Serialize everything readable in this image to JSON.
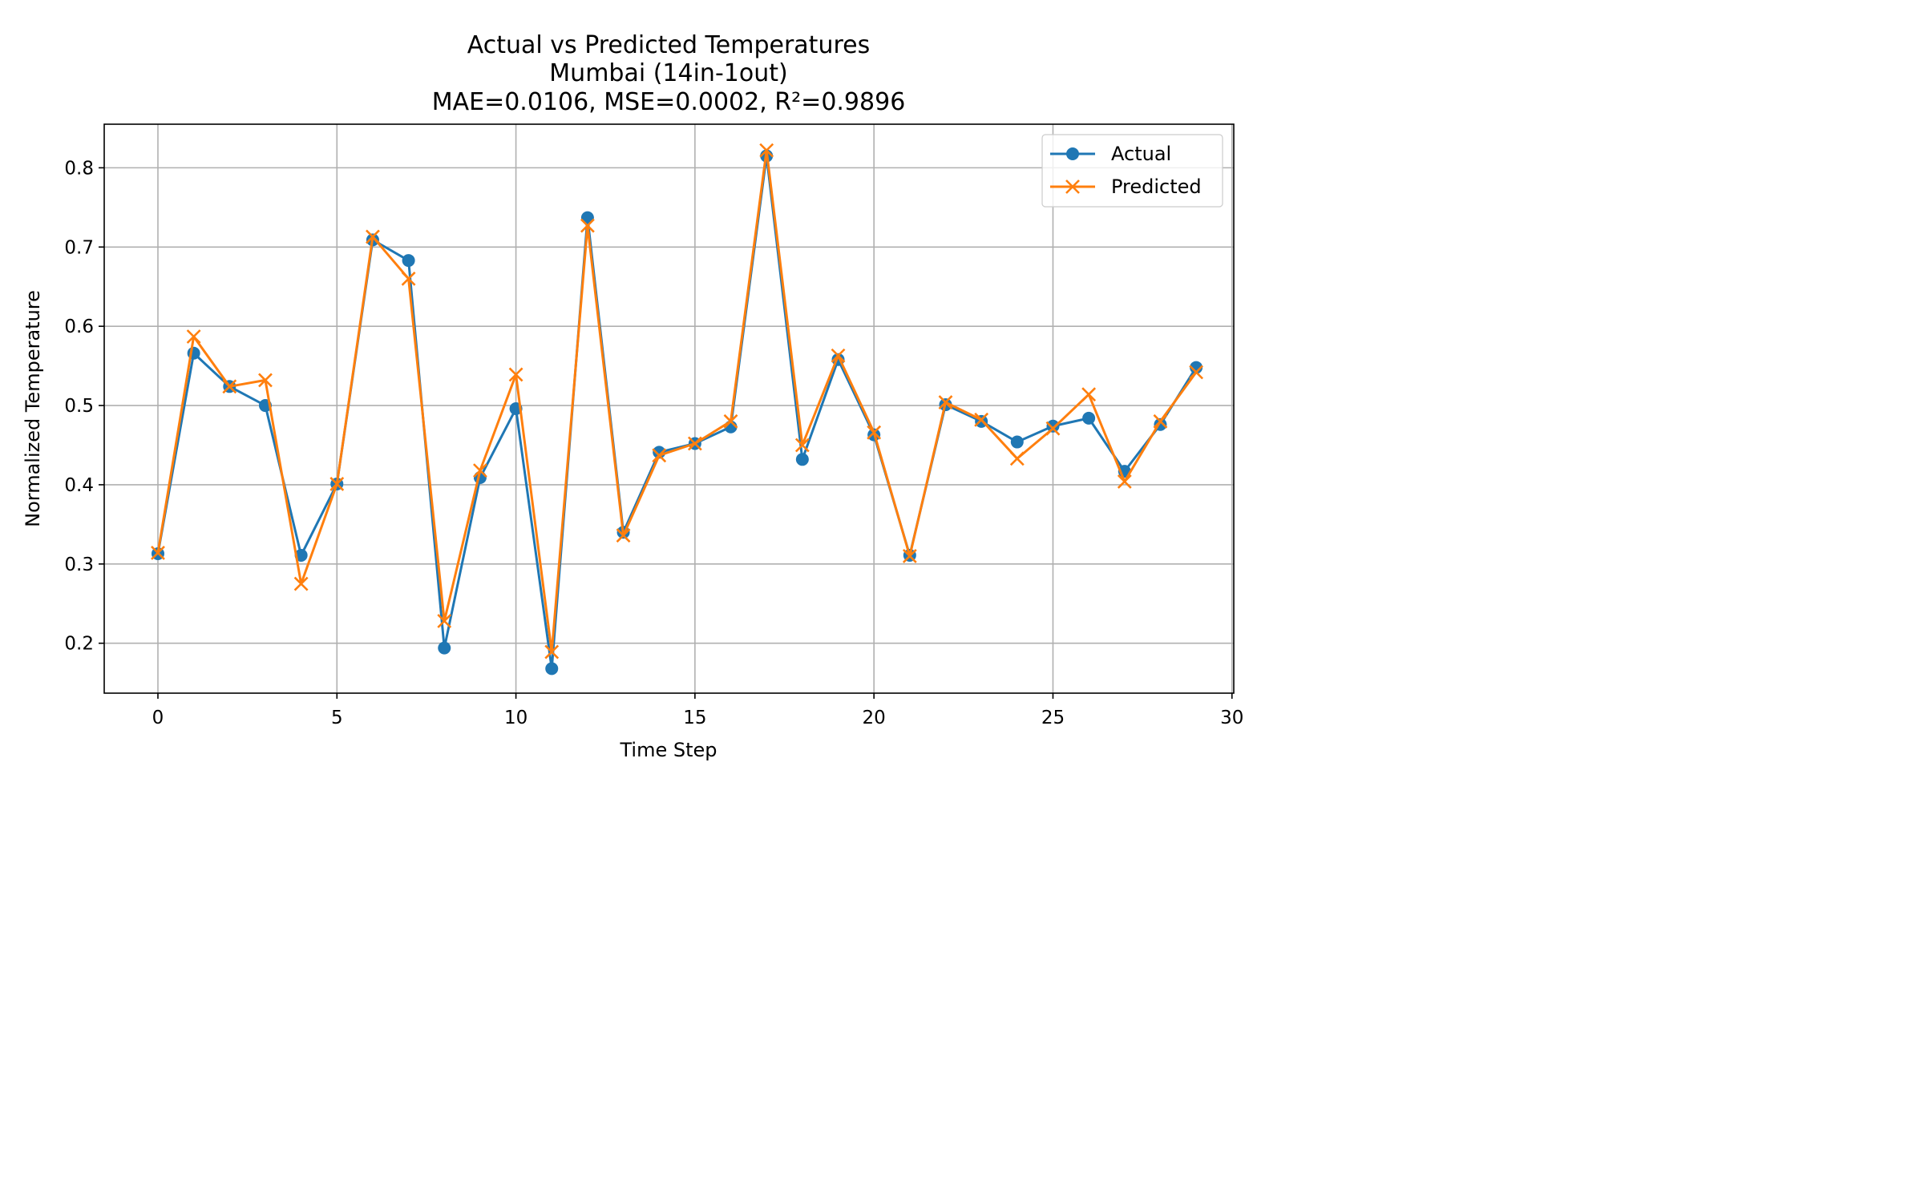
{
  "chart_data": {
    "type": "line",
    "title": "Actual vs Predicted Temperatures",
    "subtitle": "Mumbai (14in-1out)",
    "metrics_line": "MAE=0.0106, MSE=0.0002, R²=0.9896",
    "xlabel": "Time Step",
    "ylabel": "Normalized Temperature",
    "xlim": [
      -1.5,
      30.05
    ],
    "ylim": [
      0.137,
      0.855
    ],
    "xticks": [
      0,
      5,
      10,
      15,
      20,
      25,
      30
    ],
    "xtick_labels": [
      "0",
      "5",
      "10",
      "15",
      "20",
      "25",
      "30"
    ],
    "yticks": [
      0.2,
      0.3,
      0.4,
      0.5,
      0.6,
      0.7,
      0.8
    ],
    "ytick_labels": [
      "0.2",
      "0.3",
      "0.4",
      "0.5",
      "0.6",
      "0.7",
      "0.8"
    ],
    "grid": true,
    "legend_position": "top-right",
    "x": [
      0,
      1,
      2,
      3,
      4,
      5,
      6,
      7,
      8,
      9,
      10,
      11,
      12,
      13,
      14,
      15,
      16,
      17,
      18,
      19,
      20,
      21,
      22,
      23,
      24,
      25,
      26,
      27,
      28,
      29
    ],
    "series": [
      {
        "name": "Actual",
        "color": "#1f77b4",
        "marker": "circle",
        "values": [
          0.313,
          0.566,
          0.524,
          0.5,
          0.311,
          0.401,
          0.709,
          0.683,
          0.194,
          0.409,
          0.496,
          0.168,
          0.737,
          0.34,
          0.441,
          0.452,
          0.473,
          0.815,
          0.432,
          0.558,
          0.463,
          0.311,
          0.501,
          0.48,
          0.454,
          0.474,
          0.484,
          0.417,
          0.476,
          0.548
        ]
      },
      {
        "name": "Predicted",
        "color": "#ff7f0e",
        "marker": "x",
        "values": [
          0.314,
          0.587,
          0.524,
          0.532,
          0.275,
          0.401,
          0.713,
          0.66,
          0.228,
          0.418,
          0.539,
          0.189,
          0.727,
          0.336,
          0.437,
          0.452,
          0.48,
          0.822,
          0.45,
          0.563,
          0.466,
          0.31,
          0.504,
          0.482,
          0.433,
          0.471,
          0.514,
          0.404,
          0.48,
          0.542
        ]
      }
    ]
  }
}
